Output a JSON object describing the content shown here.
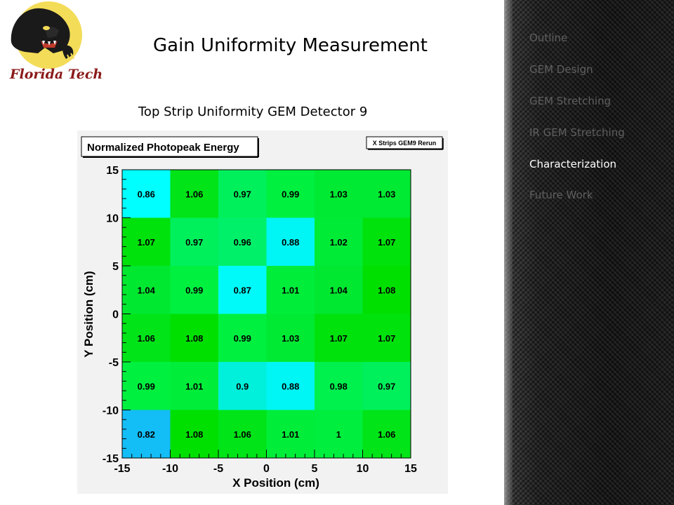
{
  "slide": {
    "title": "Gain Uniformity Measurement",
    "plot_caption": "Top Strip Uniformity GEM Detector 9",
    "logo_text": "Florida Tech"
  },
  "nav": {
    "items": [
      {
        "label": "Outline",
        "active": false
      },
      {
        "label": "GEM Design",
        "active": false
      },
      {
        "label": "GEM Stretching",
        "active": false
      },
      {
        "label": "IR GEM Stretching",
        "active": false
      },
      {
        "label": "Characterization",
        "active": true
      },
      {
        "label": "Future Work",
        "active": false
      }
    ]
  },
  "chart_data": {
    "type": "heatmap",
    "title": "Normalized Photopeak Energy",
    "legend_label": "X Strips GEM9 Rerun",
    "xlabel": "X Position (cm)",
    "ylabel": "Y Position (cm)",
    "xlim": [
      -15,
      15
    ],
    "ylim": [
      -15,
      15
    ],
    "x_ticks": [
      "-15",
      "-10",
      "-5",
      "0",
      "5",
      "10",
      "15"
    ],
    "y_ticks": [
      "-15",
      "-10",
      "-5",
      "0",
      "5",
      "10",
      "15"
    ],
    "x_bin_edges": [
      -15,
      -10,
      -5,
      0,
      5,
      10,
      15
    ],
    "y_bin_edges": [
      -15,
      -10,
      -5,
      0,
      5,
      10,
      15
    ],
    "rows_top_to_bottom": [
      [
        "0.86",
        "1.06",
        "0.97",
        "0.99",
        "1.03",
        "1.03"
      ],
      [
        "1.07",
        "0.97",
        "0.96",
        "0.88",
        "1.02",
        "1.07"
      ],
      [
        "1.04",
        "0.99",
        "0.87",
        "1.01",
        "1.04",
        "1.08"
      ],
      [
        "1.06",
        "1.08",
        "0.99",
        "1.03",
        "1.07",
        "1.07"
      ],
      [
        "0.99",
        "1.01",
        "0.9",
        "0.88",
        "0.98",
        "0.97"
      ],
      [
        "0.82",
        "1.08",
        "1.06",
        "1.01",
        "1",
        "1.06"
      ]
    ],
    "color_scale": {
      "stops": [
        {
          "v": 0.8,
          "c": "#1c9cf0"
        },
        {
          "v": 0.86,
          "c": "#00ffff"
        },
        {
          "v": 0.89,
          "c": "#00f0f0"
        },
        {
          "v": 0.95,
          "c": "#00f078"
        },
        {
          "v": 0.99,
          "c": "#00f040"
        },
        {
          "v": 1.04,
          "c": "#00e830"
        },
        {
          "v": 1.08,
          "c": "#00e000"
        }
      ]
    }
  }
}
